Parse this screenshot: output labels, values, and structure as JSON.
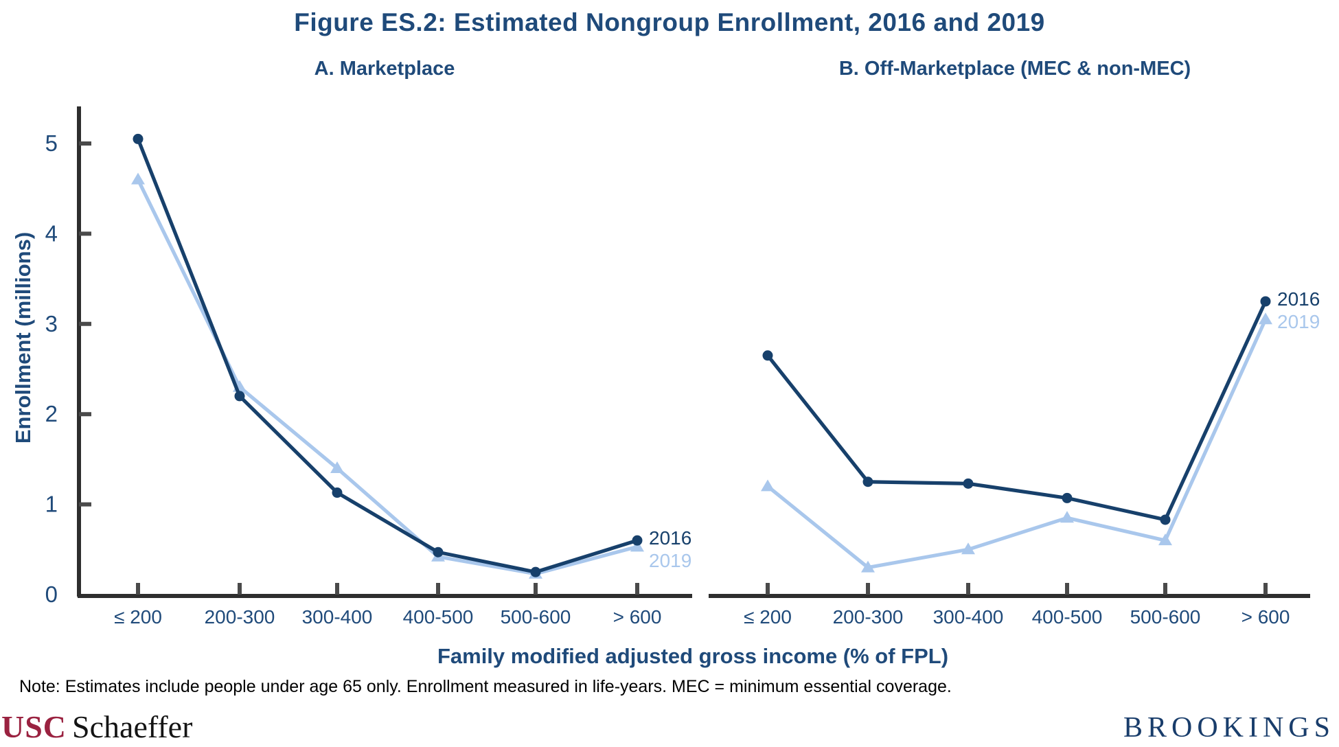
{
  "title": "Figure ES.2: Estimated Nongroup Enrollment, 2016 and 2019",
  "note": "Note: Estimates include people under age 65 only. Enrollment measured in life-years. MEC = minimum essential coverage.",
  "axis": {
    "xlabel": "Family modified adjusted gross income (% of FPL)",
    "ylabel": "Enrollment (millions)",
    "yticks": [
      0,
      1,
      2,
      3,
      4,
      5
    ],
    "ylim": [
      0,
      5
    ]
  },
  "chart_data": [
    {
      "type": "line",
      "panel": "A",
      "title": "A. Marketplace",
      "categories": [
        "≤ 200",
        "200-300",
        "300-400",
        "400-500",
        "500-600",
        "> 600"
      ],
      "xlabel": "Family modified adjusted gross income (% of FPL)",
      "ylabel": "Enrollment (millions)",
      "ylim": [
        0,
        5
      ],
      "grid": false,
      "legend_position": "end-of-line labels",
      "series": [
        {
          "name": "2016",
          "marker": "circle",
          "values": [
            5.05,
            2.2,
            1.13,
            0.47,
            0.25,
            0.6
          ]
        },
        {
          "name": "2019",
          "marker": "triangle",
          "values": [
            4.6,
            2.3,
            1.4,
            0.42,
            0.23,
            0.53
          ]
        }
      ]
    },
    {
      "type": "line",
      "panel": "B",
      "title": "B. Off-Marketplace (MEC & non-MEC)",
      "categories": [
        "≤ 200",
        "200-300",
        "300-400",
        "400-500",
        "500-600",
        "> 600"
      ],
      "xlabel": "Family modified adjusted gross income (% of FPL)",
      "ylabel": "Enrollment (millions)",
      "ylim": [
        0,
        5
      ],
      "grid": false,
      "legend_position": "end-of-line labels",
      "series": [
        {
          "name": "2016",
          "marker": "circle",
          "values": [
            2.65,
            1.25,
            1.23,
            1.07,
            0.83,
            3.25
          ]
        },
        {
          "name": "2019",
          "marker": "triangle",
          "values": [
            1.2,
            0.3,
            0.5,
            0.85,
            0.6,
            3.05
          ]
        }
      ]
    }
  ],
  "logos": {
    "usc": "USC",
    "schaeffer": "Schaeffer",
    "brookings": "BROOKINGS"
  },
  "colors": {
    "navy_text": "#1F4A7A",
    "series_2016": "#17406B",
    "series_2019": "#A9C7EC",
    "axis": "#2E2E2E",
    "tick": "#4A4A4A",
    "note_text": "#000000",
    "usc_cardinal": "#9A2240",
    "schaeffer_black": "#141414",
    "brookings_navy": "#193D6B"
  }
}
